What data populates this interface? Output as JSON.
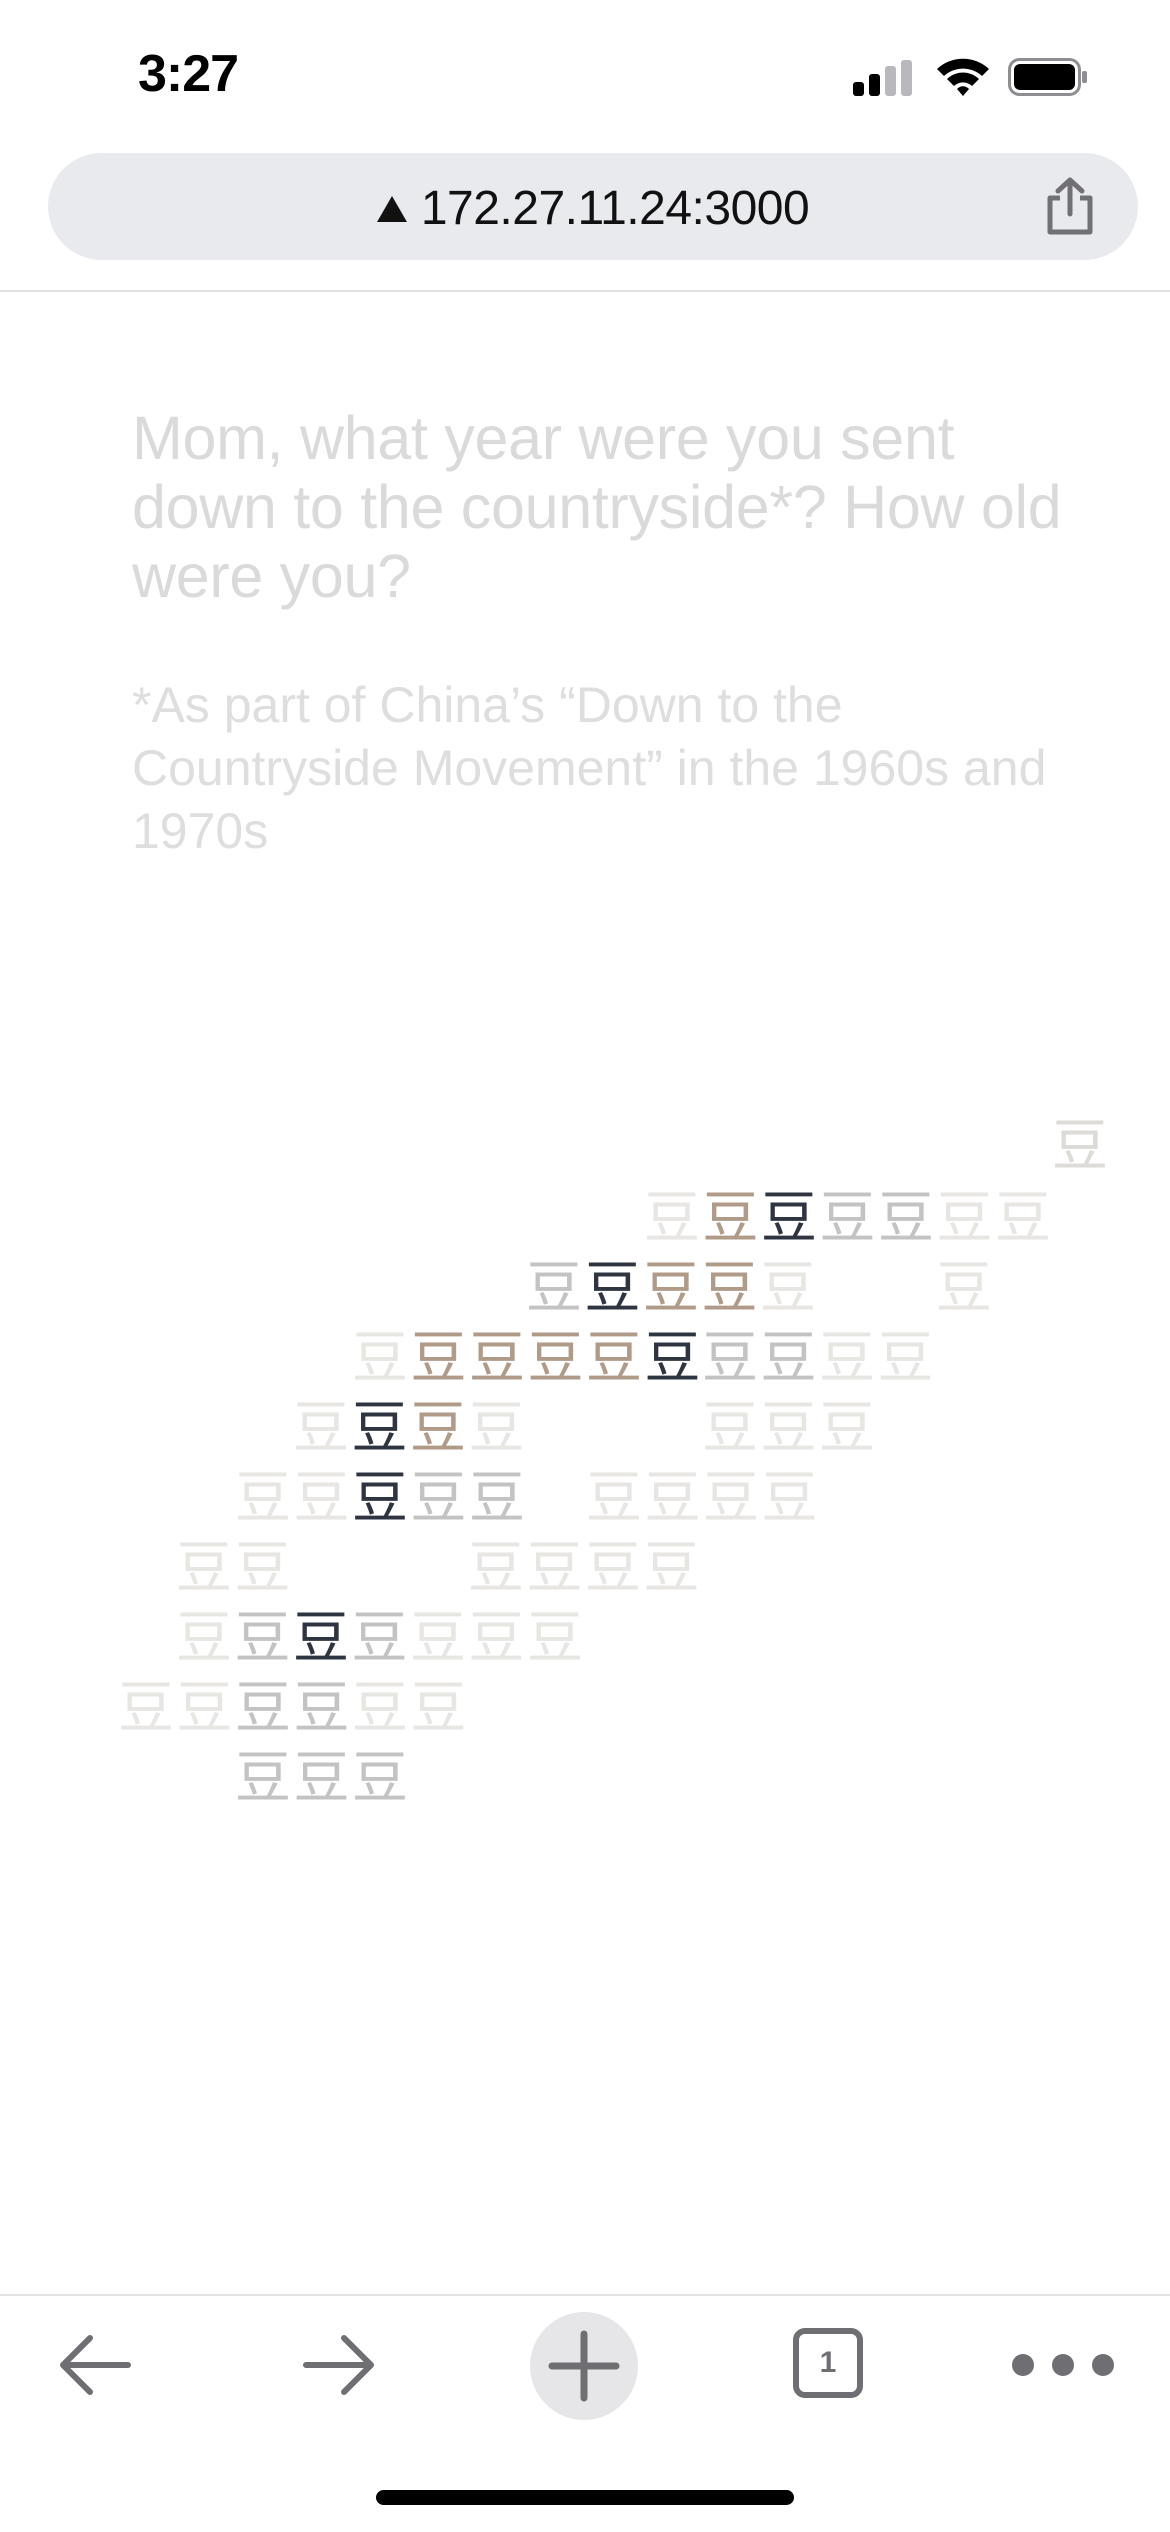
{
  "status_bar": {
    "time": "3:27",
    "icons": [
      "cellular-signal-icon",
      "wifi-icon",
      "battery-icon"
    ]
  },
  "browser": {
    "url": "172.27.11.24:3000",
    "security_icon": "warning-triangle-icon",
    "share_icon": "share-icon"
  },
  "page": {
    "question": "Mom, what year were you sent down to the countryside*? How old were you?",
    "footnote": "*As part of China’s “Down to the Countryside Movement” in the 1960s and 1970s",
    "glyph": "豆",
    "colors": {
      "dark": "#2f3540",
      "tan": "#b09a88",
      "gray": "#c3c3c3",
      "light": "#dddbd8",
      "faint": "#e8e6e3"
    }
  },
  "toolbar": {
    "back_icon": "arrow-left-icon",
    "forward_icon": "arrow-right-icon",
    "new_tab_icon": "plus-icon",
    "tab_count": "1",
    "more_icon": "ellipsis-icon"
  }
}
